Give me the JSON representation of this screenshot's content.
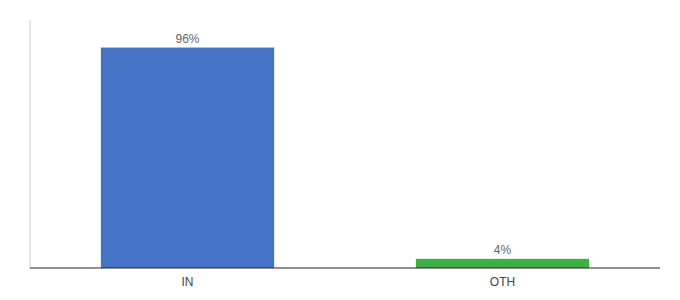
{
  "chart_data": {
    "type": "bar",
    "categories": [
      "IN",
      "OTH"
    ],
    "values": [
      96,
      4
    ],
    "value_labels": [
      "96%",
      "4%"
    ],
    "colors": [
      "#4472c4",
      "#3cb043"
    ],
    "ylim": [
      0,
      108
    ],
    "data_labels": true,
    "tick_labels": "x"
  }
}
